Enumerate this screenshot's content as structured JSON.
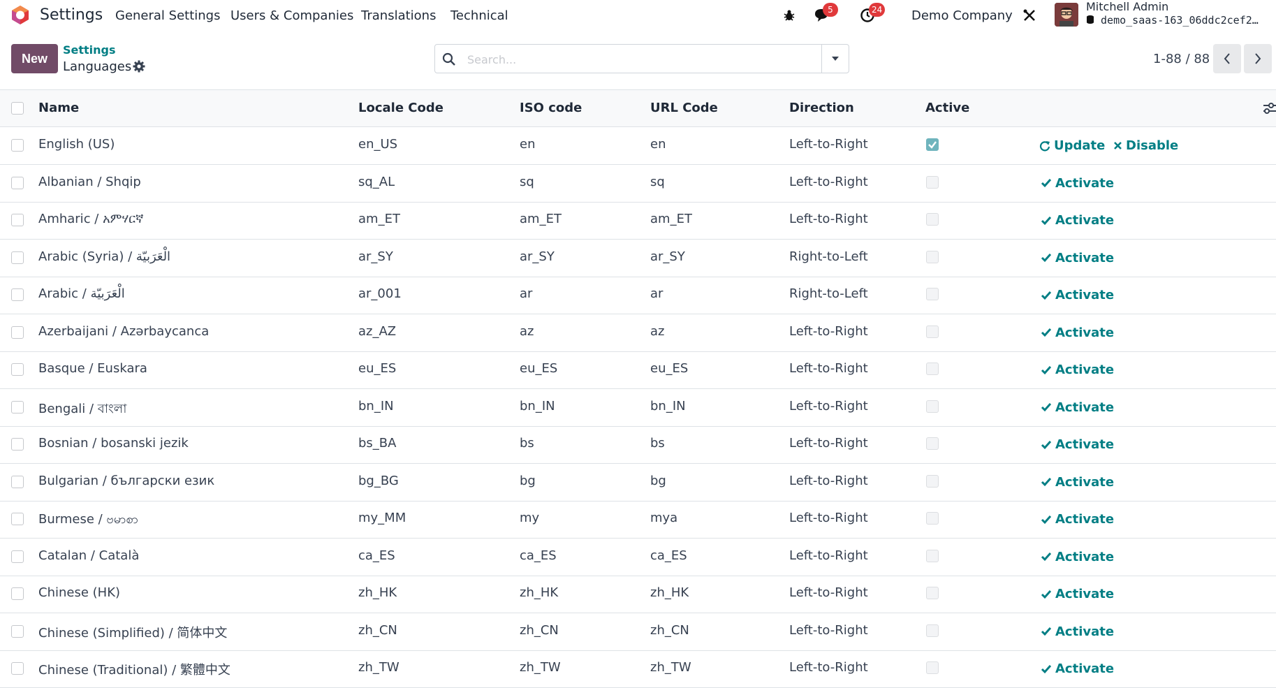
{
  "navbar": {
    "app_name": "Settings",
    "menu": [
      "General Settings",
      "Users & Companies",
      "Translations",
      "Technical"
    ],
    "messages_count": "5",
    "activities_count": "24",
    "company": "Demo Company",
    "user_name": "Mitchell Admin",
    "db_name": "demo_saas-163_06ddc2cef2…"
  },
  "control": {
    "new_label": "New",
    "breadcrumb_parent": "Settings",
    "breadcrumb_current": "Languages",
    "search_placeholder": "Search...",
    "pager": "1-88 / 88"
  },
  "table": {
    "headers": {
      "name": "Name",
      "locale": "Locale Code",
      "iso": "ISO code",
      "url": "URL Code",
      "direction": "Direction",
      "active": "Active"
    },
    "actions": {
      "update": "Update",
      "disable": "Disable",
      "activate": "Activate"
    },
    "rows": [
      {
        "name": "English (US)",
        "locale": "en_US",
        "iso": "en",
        "url": "en",
        "direction": "Left-to-Right",
        "active": true
      },
      {
        "name": "Albanian / Shqip",
        "locale": "sq_AL",
        "iso": "sq",
        "url": "sq",
        "direction": "Left-to-Right",
        "active": false
      },
      {
        "name": "Amharic / አምሃርኛ",
        "locale": "am_ET",
        "iso": "am_ET",
        "url": "am_ET",
        "direction": "Left-to-Right",
        "active": false
      },
      {
        "name": "Arabic (Syria) / الْعَرَبيّة",
        "locale": "ar_SY",
        "iso": "ar_SY",
        "url": "ar_SY",
        "direction": "Right-to-Left",
        "active": false
      },
      {
        "name": "Arabic / الْعَرَبيّة",
        "locale": "ar_001",
        "iso": "ar",
        "url": "ar",
        "direction": "Right-to-Left",
        "active": false
      },
      {
        "name": "Azerbaijani / Azərbaycanca",
        "locale": "az_AZ",
        "iso": "az",
        "url": "az",
        "direction": "Left-to-Right",
        "active": false
      },
      {
        "name": "Basque / Euskara",
        "locale": "eu_ES",
        "iso": "eu_ES",
        "url": "eu_ES",
        "direction": "Left-to-Right",
        "active": false
      },
      {
        "name": "Bengali / বাংলা",
        "locale": "bn_IN",
        "iso": "bn_IN",
        "url": "bn_IN",
        "direction": "Left-to-Right",
        "active": false
      },
      {
        "name": "Bosnian / bosanski jezik",
        "locale": "bs_BA",
        "iso": "bs",
        "url": "bs",
        "direction": "Left-to-Right",
        "active": false
      },
      {
        "name": "Bulgarian / български език",
        "locale": "bg_BG",
        "iso": "bg",
        "url": "bg",
        "direction": "Left-to-Right",
        "active": false
      },
      {
        "name": "Burmese / ဗမာစာ",
        "locale": "my_MM",
        "iso": "my",
        "url": "mya",
        "direction": "Left-to-Right",
        "active": false
      },
      {
        "name": "Catalan / Català",
        "locale": "ca_ES",
        "iso": "ca_ES",
        "url": "ca_ES",
        "direction": "Left-to-Right",
        "active": false
      },
      {
        "name": "Chinese (HK)",
        "locale": "zh_HK",
        "iso": "zh_HK",
        "url": "zh_HK",
        "direction": "Left-to-Right",
        "active": false
      },
      {
        "name": "Chinese (Simplified) / 简体中文",
        "locale": "zh_CN",
        "iso": "zh_CN",
        "url": "zh_CN",
        "direction": "Left-to-Right",
        "active": false
      },
      {
        "name": "Chinese (Traditional) / 繁體中文",
        "locale": "zh_TW",
        "iso": "zh_TW",
        "url": "zh_TW",
        "direction": "Left-to-Right",
        "active": false
      }
    ]
  },
  "colors": {
    "brand": "#714b67",
    "link": "#017e84",
    "badge": "#e0393b"
  },
  "icons": [
    "odoo-logo-icon",
    "bug-icon",
    "chat-icon",
    "clock-icon",
    "tools-icon",
    "gear-icon",
    "search-icon",
    "caret-down-icon",
    "chevron-left-icon",
    "chevron-right-icon",
    "refresh-icon",
    "close-icon",
    "check-icon",
    "optional-columns-icon"
  ]
}
